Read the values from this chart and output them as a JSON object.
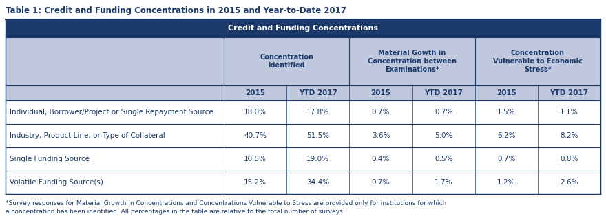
{
  "title": "Table 1: Credit and Funding Concentrations in 2015 and Year-to-Date 2017",
  "main_header": "Credit and Funding Concentrations",
  "col_group_labels": [
    "Concentration\nIdentified",
    "Material Gowth in\nConcentration between\nExaminations*",
    "Concentration\nVulnerable to Economic\nStress*"
  ],
  "sub_headers": [
    "2015",
    "YTD 2017",
    "2015",
    "YTD 2017",
    "2015",
    "YTD 2017"
  ],
  "row_labels": [
    "Individual, Borrower/Project or Single Repayment Source",
    "Industry, Product Line, or Type of Collateral",
    "Single Funding Source",
    "Volatile Funding Source(s)"
  ],
  "data": [
    [
      "18.0%",
      "17.8%",
      "0.7%",
      "0.7%",
      "1.5%",
      "1.1%"
    ],
    [
      "40.7%",
      "51.5%",
      "3.6%",
      "5.0%",
      "6.2%",
      "8.2%"
    ],
    [
      "10.5%",
      "19.0%",
      "0.4%",
      "0.5%",
      "0.7%",
      "0.8%"
    ],
    [
      "15.2%",
      "34.4%",
      "0.7%",
      "1.7%",
      "1.2%",
      "2.6%"
    ]
  ],
  "footnote_line1": "*Survey responses for Material Growth in Concentrations and Concentrations Vulnerable to Stress are provided only for institutions for which",
  "footnote_line2": "a concentration has been identified. All percentages in the table are relative to the total number of surveys.",
  "dark_blue": "#1B3A6B",
  "light_blue_bg": "#BFC8DD",
  "white": "#FFFFFF",
  "border_color": "#1B3A6B",
  "text_dark_blue": "#1B3A6B",
  "title_fontsize": 8.5,
  "header_fontsize": 8.0,
  "subheader_fontsize": 7.5,
  "data_fontsize": 7.5,
  "footnote_fontsize": 6.5
}
